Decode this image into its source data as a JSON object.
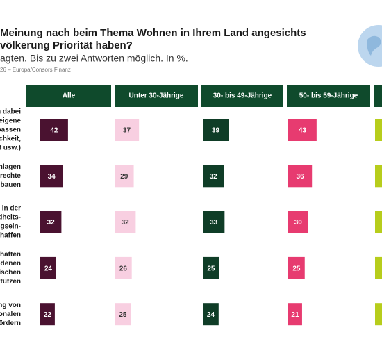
{
  "header": {
    "title_lines": [
      "Meinung nach beim Thema Wohnen in Ihrem Land angesichts",
      "völkerung Priorität haben?"
    ],
    "subtitle": "agten. Bis zu zwei Antworten möglich. In %.",
    "source": "26 – Europa/Consors Finanz"
  },
  "table": {
    "columns": [
      {
        "name": "Alle",
        "color": "#4a1230"
      },
      {
        "name": "Unter 30-Jährige",
        "color": "#f8cfe1"
      },
      {
        "name": "30- bis 49-Jährige",
        "color": "#0f3d27"
      },
      {
        "name": "50- bis 59-Jährige",
        "color": "#e73b70"
      }
    ],
    "rows": [
      {
        "label_lines": [
          "n dabei",
          "eigene",
          "passen",
          "chkeit,",
          "t usw.)"
        ],
        "values": [
          42,
          37,
          39,
          43
        ]
      },
      {
        "label_lines": [
          "nlagen",
          "erechte",
          "bauen"
        ],
        "values": [
          34,
          29,
          32,
          36
        ]
      },
      {
        "label_lines": [
          "in der",
          "dheits-",
          "ngsein-",
          "chaffen"
        ],
        "values": [
          32,
          32,
          33,
          30
        ]
      },
      {
        "label_lines": [
          "haften",
          "edenen",
          "ischen",
          "tützen"
        ],
        "values": [
          24,
          26,
          25,
          25
        ]
      },
      {
        "label_lines": [
          "ng von",
          "onalen",
          "ördern"
        ],
        "values": [
          22,
          25,
          24,
          21
        ]
      }
    ]
  }
}
